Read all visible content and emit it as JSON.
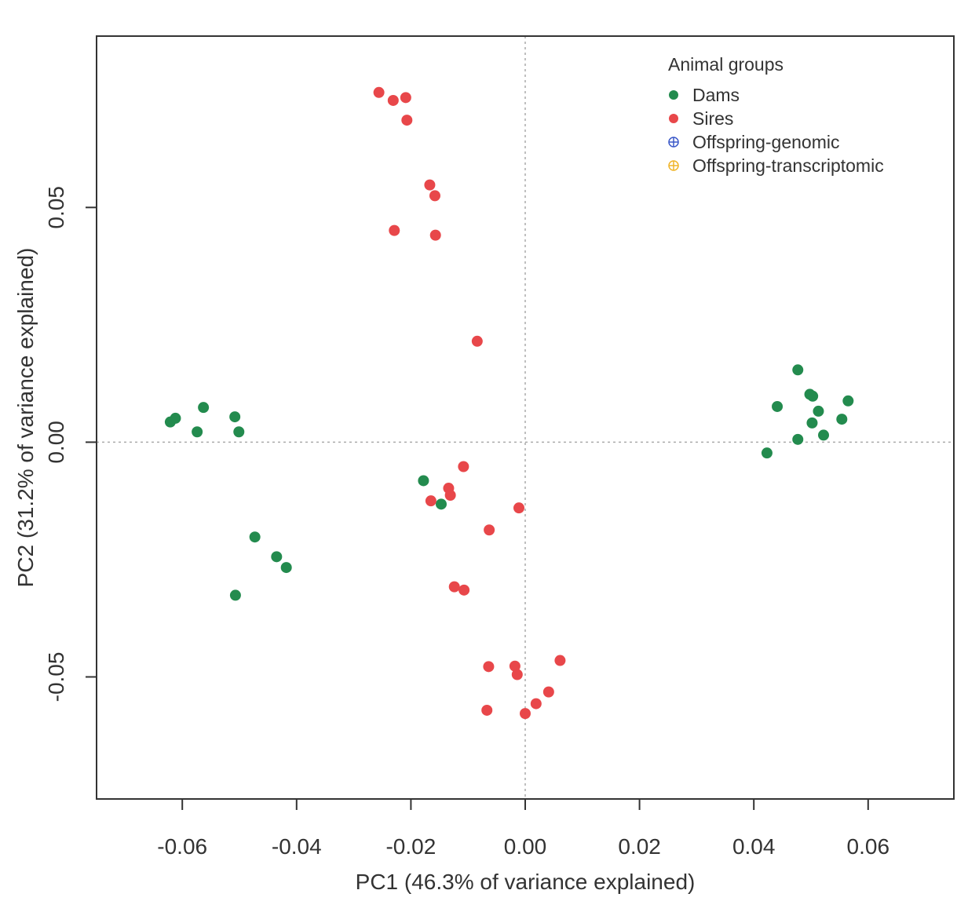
{
  "chart_data": {
    "type": "scatter",
    "xlabel": "PC1 (46.3% of variance explained)",
    "ylabel": "PC2 (31.2% of variance explained)",
    "xlim": [
      -0.075,
      0.075
    ],
    "ylim": [
      -0.076,
      0.0865
    ],
    "x_ticks": [
      -0.06,
      -0.04,
      -0.02,
      0.0,
      0.02,
      0.04,
      0.06
    ],
    "x_tick_labels": [
      "-0.06",
      "-0.04",
      "-0.02",
      "0.00",
      "0.02",
      "0.04",
      "0.06"
    ],
    "y_ticks": [
      -0.05,
      0.0,
      0.05
    ],
    "y_tick_labels": [
      "-0.05",
      "0.00",
      "0.05"
    ],
    "reference_lines": {
      "x": 0,
      "y": 0,
      "style": "dotted"
    },
    "legend": {
      "title": "Animal groups",
      "position": "top-right",
      "entries": [
        {
          "label": "Dams",
          "color": "#238b4e",
          "marker": "filled-circle"
        },
        {
          "label": "Sires",
          "color": "#e8474a",
          "marker": "filled-circle"
        },
        {
          "label": "Offspring-genomic",
          "color": "#3b58c8",
          "marker": "circle-plus"
        },
        {
          "label": "Offspring-transcriptomic",
          "color": "#f0b429",
          "marker": "circle-plus"
        }
      ]
    },
    "series": [
      {
        "name": "Dams",
        "color": "#238b4e",
        "marker": "filled-circle",
        "x": [
          -0.0621,
          -0.0612,
          -0.0563,
          -0.0574,
          -0.0508,
          -0.0501,
          -0.0473,
          -0.0435,
          -0.0507,
          -0.0418,
          0.0423,
          0.0441,
          0.0477,
          0.0503,
          0.0498,
          0.0513,
          0.0502,
          0.0522,
          0.0565,
          0.0554,
          0.0477,
          -0.0178,
          -0.0147
        ],
        "y": [
          0.0043,
          0.0051,
          0.0074,
          0.0022,
          0.0054,
          0.0022,
          -0.0202,
          -0.0244,
          -0.0326,
          -0.0267,
          -0.0023,
          0.0076,
          0.0154,
          0.0098,
          0.0102,
          0.0066,
          0.0041,
          0.0015,
          0.0088,
          0.0049,
          0.0006,
          -0.0082,
          -0.0132
        ]
      },
      {
        "name": "Sires",
        "color": "#e8474a",
        "marker": "filled-circle",
        "x": [
          -0.0256,
          -0.0231,
          -0.0209,
          -0.0207,
          -0.0167,
          -0.0158,
          -0.0229,
          -0.0157,
          -0.0084,
          -0.0108,
          -0.0165,
          -0.0134,
          -0.0131,
          -0.0063,
          -0.0011,
          -0.0124,
          -0.0107,
          -0.0064,
          -0.0018,
          -0.0014,
          0.0061,
          0.0041,
          0.0019,
          0.0,
          -0.0067
        ],
        "y": [
          0.0745,
          0.0728,
          0.0734,
          0.0686,
          0.0548,
          0.0525,
          0.0451,
          0.0441,
          0.0215,
          -0.0052,
          -0.0125,
          -0.0098,
          -0.0113,
          -0.0187,
          -0.014,
          -0.0308,
          -0.0315,
          -0.0478,
          -0.0477,
          -0.0495,
          -0.0465,
          -0.0532,
          -0.0557,
          -0.0578,
          -0.0571
        ]
      }
    ]
  }
}
